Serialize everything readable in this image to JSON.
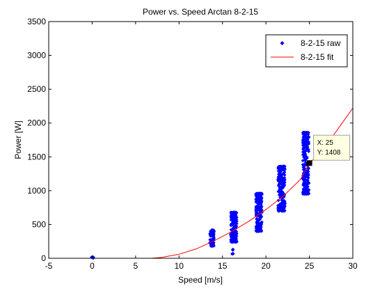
{
  "figure": {
    "background": "#ffffff"
  },
  "chart_data": {
    "type": "scatter",
    "title": "Power vs. Speed Arctan 8-2-15",
    "xlabel": "Speed [m/s]",
    "ylabel": "Power [W]",
    "xlim": [
      -5,
      30
    ],
    "ylim": [
      0,
      3500
    ],
    "x_ticks": [
      -5,
      0,
      5,
      10,
      15,
      20,
      25,
      30
    ],
    "y_ticks": [
      0,
      500,
      1000,
      1500,
      2000,
      2500,
      3000,
      3500
    ],
    "x_tick_labels": [
      "-5",
      "0",
      "5",
      "10",
      "15",
      "20",
      "25",
      "30"
    ],
    "y_tick_labels": [
      "0",
      "500",
      "1000",
      "1500",
      "2000",
      "2500",
      "3000",
      "3500"
    ],
    "grid": false,
    "legend_position": "top-right",
    "series": [
      {
        "name": "8-2-15 raw",
        "kind": "points",
        "color": "#0000ff",
        "clusters": [
          {
            "x": 0.0,
            "spread": 0.15,
            "y_min": 0,
            "y_max": 20,
            "count": 6
          },
          {
            "x": 13.8,
            "spread": 0.25,
            "y_min": 180,
            "y_max": 420,
            "count": 60
          },
          {
            "x": 16.3,
            "spread": 0.35,
            "y_min": 240,
            "y_max": 680,
            "count": 160
          },
          {
            "x": 16.25,
            "spread": 0.15,
            "y_min": 60,
            "y_max": 130,
            "count": 6
          },
          {
            "x": 19.2,
            "spread": 0.35,
            "y_min": 400,
            "y_max": 960,
            "count": 200
          },
          {
            "x": 21.8,
            "spread": 0.4,
            "y_min": 700,
            "y_max": 1360,
            "count": 230
          },
          {
            "x": 24.6,
            "spread": 0.35,
            "y_min": 950,
            "y_max": 1860,
            "count": 230
          }
        ]
      },
      {
        "name": "8-2-15 fit",
        "kind": "line",
        "color": "#ff0000",
        "x": [
          6.8,
          8,
          10,
          12,
          14,
          16,
          18,
          20,
          22,
          24,
          25,
          26,
          28,
          30
        ],
        "y": [
          0,
          12,
          60,
          140,
          255,
          390,
          545,
          720,
          920,
          1170,
          1408,
          1520,
          1860,
          2220
        ]
      }
    ],
    "annotations": [
      {
        "type": "datatip",
        "x": 25,
        "y": 1408,
        "lines": [
          "X: 25",
          "Y: 1408"
        ],
        "background": "#ffffe1"
      }
    ]
  }
}
